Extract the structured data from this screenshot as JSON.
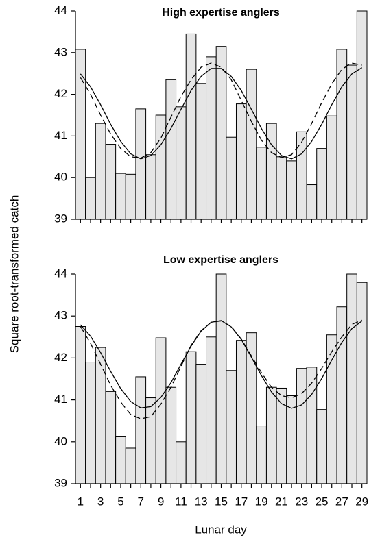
{
  "ylabel": "Square root-transformed catch",
  "xlabel": "Lunar day",
  "chart_data": [
    {
      "type": "bar",
      "title": "High expertise anglers",
      "color": "#e6e6e6",
      "values": [
        43.08,
        40.0,
        41.3,
        40.8,
        40.1,
        40.08,
        41.65,
        40.55,
        41.5,
        42.35,
        41.7,
        43.45,
        42.26,
        42.9,
        43.15,
        40.97,
        41.77,
        42.6,
        40.73,
        41.3,
        40.5,
        40.4,
        41.1,
        39.83,
        40.7,
        41.48,
        43.08,
        42.7,
        44.0
      ],
      "lines": [
        {
          "dashed": false,
          "values": [
            42.49,
            42.18,
            41.75,
            41.28,
            40.87,
            40.57,
            40.45,
            40.53,
            40.79,
            41.18,
            41.64,
            42.09,
            42.43,
            42.62,
            42.62,
            42.43,
            42.09,
            41.64,
            41.18,
            40.79,
            40.53,
            40.45,
            40.57,
            40.87,
            41.28,
            41.75,
            42.18,
            42.49,
            42.64
          ]
        },
        {
          "dashed": true,
          "values": [
            42.4,
            42.0,
            41.5,
            41.05,
            40.7,
            40.5,
            40.47,
            40.6,
            40.95,
            41.45,
            41.95,
            42.35,
            42.65,
            42.75,
            42.65,
            42.35,
            41.85,
            41.35,
            40.9,
            40.6,
            40.48,
            40.55,
            40.85,
            41.3,
            41.8,
            42.25,
            42.6,
            42.75,
            42.7
          ]
        }
      ],
      "ylim": [
        39,
        44
      ],
      "yticks": [
        39,
        40,
        41,
        42,
        43,
        44
      ]
    },
    {
      "type": "bar",
      "title": "Low expertise anglers",
      "color": "#e6e6e6",
      "categories": [
        "1",
        null,
        "3",
        null,
        "5",
        null,
        "7",
        null,
        "9",
        null,
        "11",
        null,
        "13",
        null,
        "15",
        null,
        "17",
        null,
        "19",
        null,
        "21",
        null,
        "23",
        null,
        "25",
        null,
        "27",
        null,
        "29"
      ],
      "values": [
        42.75,
        41.9,
        42.25,
        41.2,
        40.12,
        39.85,
        41.55,
        41.05,
        42.48,
        41.3,
        40.0,
        42.15,
        41.85,
        42.5,
        44.0,
        41.7,
        42.42,
        42.6,
        40.38,
        41.3,
        41.28,
        41.1,
        41.75,
        41.78,
        40.77,
        42.55,
        43.22,
        44.0,
        43.8
      ],
      "lines": [
        {
          "dashed": false,
          "values": [
            42.79,
            42.52,
            42.13,
            41.68,
            41.27,
            40.96,
            40.81,
            40.84,
            41.06,
            41.41,
            41.85,
            42.28,
            42.64,
            42.85,
            42.89,
            42.74,
            42.44,
            42.02,
            41.58,
            41.19,
            40.91,
            40.8,
            40.88,
            41.13,
            41.51,
            41.95,
            42.37,
            42.7,
            42.88
          ]
        },
        {
          "dashed": true,
          "values": [
            42.75,
            42.35,
            41.85,
            41.35,
            40.95,
            40.65,
            40.55,
            40.6,
            40.9,
            41.3,
            41.8,
            42.3,
            42.65,
            42.85,
            42.88,
            42.75,
            42.45,
            42.05,
            41.65,
            41.3,
            41.1,
            41.05,
            41.15,
            41.4,
            41.75,
            42.15,
            42.5,
            42.8,
            42.9
          ]
        }
      ],
      "ylim": [
        39,
        44
      ],
      "yticks": [
        39,
        40,
        41,
        42,
        43,
        44
      ]
    }
  ]
}
